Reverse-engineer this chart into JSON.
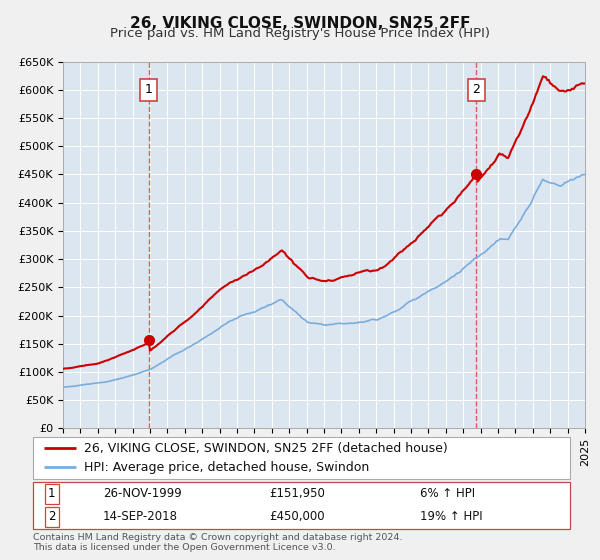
{
  "title": "26, VIKING CLOSE, SWINDON, SN25 2FF",
  "subtitle": "Price paid vs. HM Land Registry's House Price Index (HPI)",
  "fig_bg_color": "#f0f0f0",
  "plot_bg_color": "#dce6f0",
  "red_line_color": "#cc0000",
  "blue_line_color": "#7aacdc",
  "grid_color": "#ffffff",
  "sale1_year": 1999.9,
  "sale1_price": 151950,
  "sale2_year": 2018.72,
  "sale2_price": 450000,
  "xmin": 1995,
  "xmax": 2025,
  "ymin": 0,
  "ymax": 650000,
  "yticks": [
    0,
    50000,
    100000,
    150000,
    200000,
    250000,
    300000,
    350000,
    400000,
    450000,
    500000,
    550000,
    600000,
    650000
  ],
  "ytick_labels": [
    "£0",
    "£50K",
    "£100K",
    "£150K",
    "£200K",
    "£250K",
    "£300K",
    "£350K",
    "£400K",
    "£450K",
    "£500K",
    "£550K",
    "£600K",
    "£650K"
  ],
  "legend_line1": "26, VIKING CLOSE, SWINDON, SN25 2FF (detached house)",
  "legend_line2": "HPI: Average price, detached house, Swindon",
  "annotation1_label": "1",
  "annotation1_date": "26-NOV-1999",
  "annotation1_price": "£151,950",
  "annotation1_hpi": "6% ↑ HPI",
  "annotation2_label": "2",
  "annotation2_date": "14-SEP-2018",
  "annotation2_price": "£450,000",
  "annotation2_hpi": "19% ↑ HPI",
  "footer_line1": "Contains HM Land Registry data © Crown copyright and database right 2024.",
  "footer_line2": "This data is licensed under the Open Government Licence v3.0.",
  "title_fontsize": 11,
  "subtitle_fontsize": 9.5,
  "axis_fontsize": 8,
  "legend_fontsize": 9,
  "annot_fontsize": 8.5
}
